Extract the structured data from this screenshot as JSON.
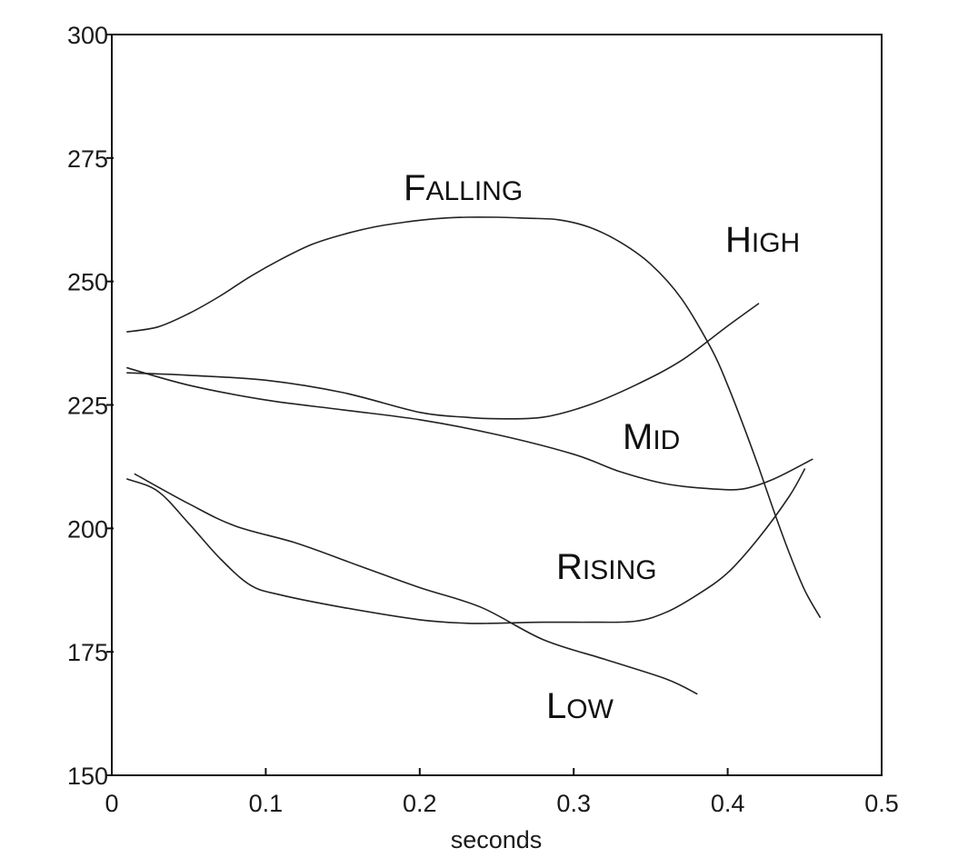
{
  "chart_data": {
    "type": "line",
    "xlabel": "seconds",
    "ylabel": "",
    "xlim": [
      0,
      0.5
    ],
    "ylim": [
      150,
      300
    ],
    "xticks": [
      "0",
      "0.1",
      "0.2",
      "0.3",
      "0.4",
      "0.5"
    ],
    "yticks": [
      "150",
      "175",
      "200",
      "225",
      "250",
      "275",
      "300"
    ],
    "grid": false,
    "legend": "none",
    "series": [
      {
        "name": "Falling",
        "label_big": "F",
        "label_small": "ALLING",
        "x": [
          0.01,
          0.03,
          0.05,
          0.07,
          0.09,
          0.11,
          0.13,
          0.15,
          0.17,
          0.19,
          0.21,
          0.23,
          0.25,
          0.27,
          0.29,
          0.31,
          0.33,
          0.35,
          0.37,
          0.39,
          0.4,
          0.41,
          0.42,
          0.43,
          0.44,
          0.45,
          0.46
        ],
        "y": [
          239.8,
          240.8,
          243.5,
          247,
          251,
          254.5,
          257.5,
          259.5,
          261,
          262,
          262.7,
          263,
          263,
          262.8,
          262.5,
          261,
          258,
          253.5,
          246.5,
          236,
          229,
          221,
          212.5,
          203.5,
          195,
          187.5,
          182
        ]
      },
      {
        "name": "High",
        "label_big": "H",
        "label_small": "IGH",
        "x": [
          0.01,
          0.05,
          0.1,
          0.15,
          0.2,
          0.23,
          0.25,
          0.28,
          0.31,
          0.34,
          0.37,
          0.4,
          0.42
        ],
        "y": [
          231.5,
          231,
          230,
          227.5,
          223.5,
          222.5,
          222.2,
          222.5,
          225,
          229,
          234,
          241,
          245.5
        ]
      },
      {
        "name": "Mid",
        "label_big": "M",
        "label_small": "ID",
        "x": [
          0.01,
          0.05,
          0.1,
          0.15,
          0.2,
          0.25,
          0.3,
          0.33,
          0.36,
          0.39,
          0.41,
          0.43,
          0.455
        ],
        "y": [
          232.5,
          229,
          226,
          224,
          222,
          219,
          215,
          211.5,
          209,
          208,
          208,
          210,
          214
        ]
      },
      {
        "name": "Rising",
        "label_big": "R",
        "label_small": "ISING",
        "x": [
          0.01,
          0.03,
          0.05,
          0.07,
          0.09,
          0.11,
          0.15,
          0.2,
          0.23,
          0.25,
          0.28,
          0.31,
          0.34,
          0.36,
          0.38,
          0.4,
          0.42,
          0.44,
          0.45
        ],
        "y": [
          210,
          207.5,
          201,
          194,
          188.5,
          186.5,
          184,
          181.5,
          180.8,
          180.8,
          181,
          181,
          181.2,
          183,
          186.5,
          191,
          198,
          206.5,
          212
        ]
      },
      {
        "name": "Low",
        "label_big": "L",
        "label_small": "OW",
        "x": [
          0.015,
          0.05,
          0.08,
          0.12,
          0.16,
          0.2,
          0.24,
          0.28,
          0.32,
          0.36,
          0.38
        ],
        "y": [
          211,
          205,
          200.5,
          197,
          192.5,
          188,
          184,
          177.5,
          173.5,
          169.5,
          166.5
        ]
      }
    ]
  }
}
